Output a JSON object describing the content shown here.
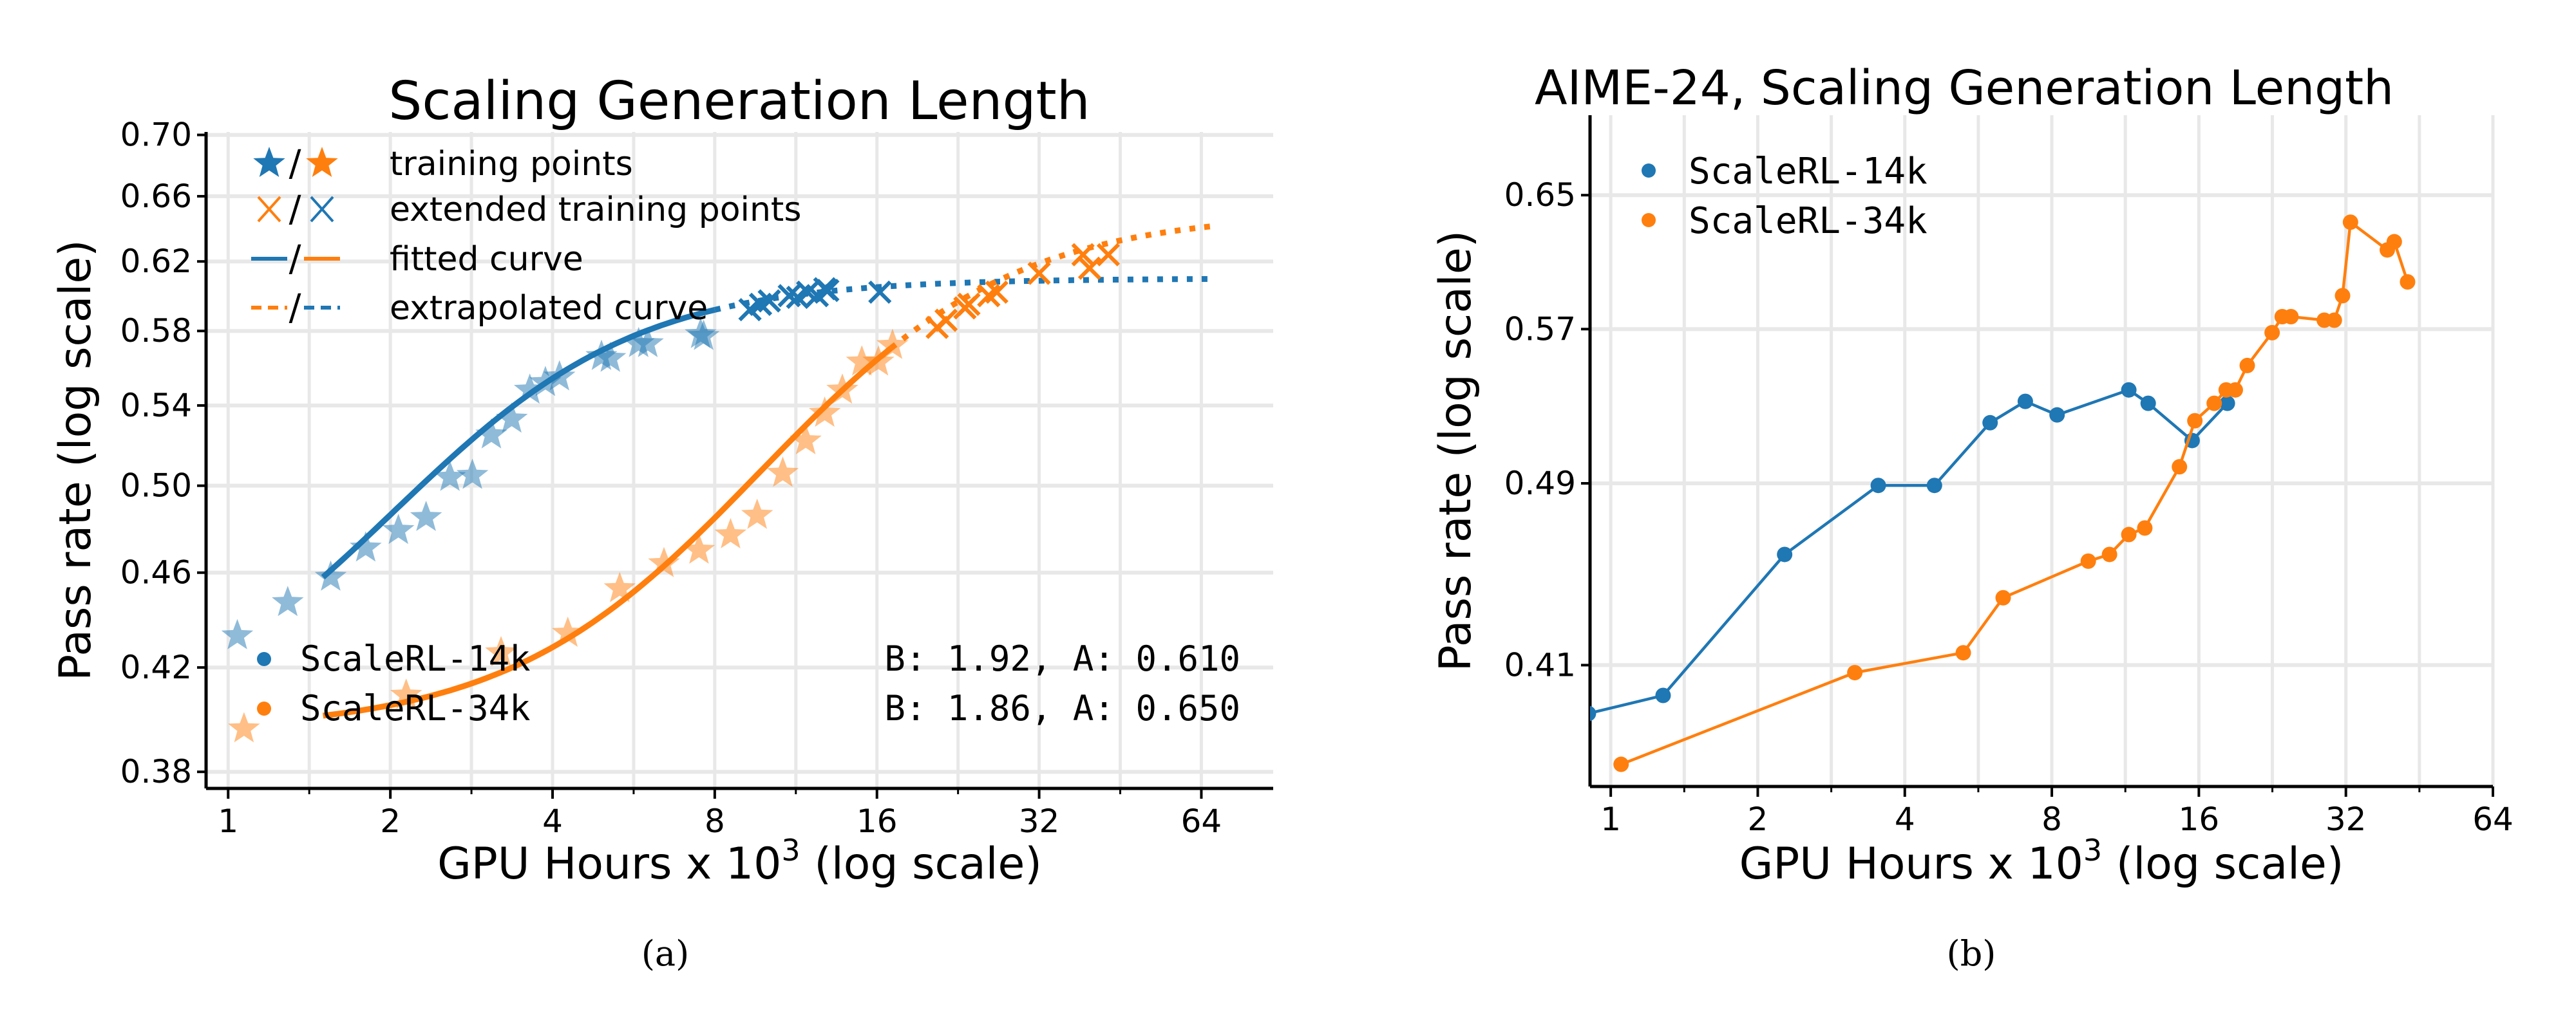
{
  "colors": {
    "blue": "#1f77b4",
    "orange": "#ff7f0e",
    "grid": "#e8e8e8",
    "axis": "#000000"
  },
  "captions": {
    "a": "(a)",
    "b": "(b)"
  },
  "chart_data": [
    {
      "type": "scatter",
      "title": "Scaling Generation Length",
      "xlabel": "GPU Hours x 10",
      "xlabel_sup": "3",
      "xlabel_suffix": " (log scale)",
      "ylabel": "Pass rate (log scale)",
      "xscale": "log2",
      "yscale": "log",
      "xlim": [
        0.91,
        87
      ],
      "ylim": [
        0.374,
        0.702
      ],
      "grid": true,
      "xticks": [
        "1",
        "2",
        "4",
        "8",
        "16",
        "32",
        "64"
      ],
      "yticks": [
        "0.38",
        "0.42",
        "0.46",
        "0.50",
        "0.54",
        "0.58",
        "0.62",
        "0.66",
        "0.70"
      ],
      "legend_top": {
        "placement": "top-left",
        "entries": [
          {
            "marker": "star",
            "sep": "/",
            "label": "training points"
          },
          {
            "marker": "x",
            "sep": "/",
            "label": "extended training points"
          },
          {
            "marker": "solid-line",
            "sep": "/",
            "label": "fitted curve"
          },
          {
            "marker": "dashed-line",
            "sep": "/",
            "label": "extrapolated curve"
          }
        ]
      },
      "legend_bottom": {
        "placement": "bottom-left",
        "entries": [
          "ScaleRL-14k",
          "ScaleRL-34k"
        ]
      },
      "annotations": [
        "B: 1.92, A: 0.610",
        "B: 1.86, A: 0.650"
      ],
      "series": [
        {
          "name": "ScaleRL-14k",
          "color": "blue",
          "fit": {
            "A": 0.61,
            "B": 1.92
          },
          "training_points": {
            "x": [
              1.04,
              1.29,
              1.55,
              1.8,
              2.07,
              2.33,
              2.58,
              2.84,
              3.08,
              3.36,
              3.63,
              3.88,
              4.12,
              4.93,
              5.12,
              5.78,
              6.01,
              7.53,
              7.63
            ],
            "y": [
              0.433,
              0.447,
              0.458,
              0.471,
              0.479,
              0.485,
              0.504,
              0.505,
              0.525,
              0.533,
              0.548,
              0.552,
              0.555,
              0.566,
              0.565,
              0.573,
              0.573,
              0.578,
              0.577
            ]
          },
          "extended_points": {
            "x": [
              9.3,
              9.73,
              10.1,
              11.0,
              11.4,
              11.9,
              12.4,
              12.8,
              12.97,
              16.2
            ],
            "y": [
              0.592,
              0.595,
              0.597,
              0.6,
              0.599,
              0.602,
              0.6,
              0.604,
              0.603,
              0.602
            ]
          }
        },
        {
          "name": "ScaleRL-34k",
          "color": "orange",
          "fit": {
            "A": 0.65,
            "B": 1.86
          },
          "training_points": {
            "x": [
              1.07,
              2.14,
              3.21,
              4.27,
              5.33,
              6.44,
              7.48,
              8.56,
              9.59,
              10.7,
              11.8,
              12.8,
              13.8,
              15.0,
              16.1,
              17.1
            ],
            "y": [
              0.396,
              0.409,
              0.426,
              0.434,
              0.453,
              0.464,
              0.47,
              0.477,
              0.486,
              0.506,
              0.522,
              0.536,
              0.548,
              0.563,
              0.563,
              0.572
            ]
          },
          "extended_points": {
            "x": [
              20.7,
              21.5,
              23.3,
              23.7,
              25.8,
              26.7,
              32.0,
              38.6,
              39.7,
              43.0
            ],
            "y": [
              0.582,
              0.586,
              0.593,
              0.595,
              0.6,
              0.602,
              0.613,
              0.624,
              0.616,
              0.624
            ]
          }
        }
      ]
    },
    {
      "type": "line",
      "title": "AIME-24, Scaling Generation Length",
      "xlabel": "GPU Hours x 10",
      "xlabel_sup": "3",
      "xlabel_suffix": " (log scale)",
      "ylabel": "Pass rate (log scale)",
      "xscale": "log2",
      "yscale": "log",
      "xlim": [
        0.907,
        64
      ],
      "ylim": [
        0.364,
        0.703
      ],
      "grid": true,
      "xticks": [
        "1",
        "2",
        "4",
        "8",
        "16",
        "32",
        "64"
      ],
      "yticks": [
        "0.41",
        "0.49",
        "0.57",
        "0.65"
      ],
      "legend": {
        "placement": "top-left",
        "entries": [
          "ScaleRL-14k",
          "ScaleRL-34k"
        ]
      },
      "series": [
        {
          "name": "ScaleRL-14k",
          "color": "blue",
          "x": [
            0.9,
            1.28,
            2.27,
            3.53,
            4.6,
            5.98,
            7.06,
            8.2,
            11.5,
            12.6,
            15.5,
            18.3
          ],
          "y": [
            0.391,
            0.398,
            0.457,
            0.489,
            0.489,
            0.52,
            0.531,
            0.524,
            0.537,
            0.53,
            0.511,
            0.53
          ]
        },
        {
          "name": "ScaleRL-34k",
          "color": "orange",
          "x": [
            1.05,
            3.16,
            5.27,
            6.36,
            9.5,
            10.5,
            11.5,
            12.4,
            14.6,
            15.7,
            17.2,
            18.2,
            19.0,
            20.1,
            22.6,
            23.7,
            24.7,
            28.9,
            30.3,
            31.5,
            32.7,
            38.9,
            40.2,
            42.8
          ],
          "y": [
            0.372,
            0.407,
            0.415,
            0.438,
            0.454,
            0.457,
            0.466,
            0.469,
            0.498,
            0.521,
            0.53,
            0.537,
            0.537,
            0.55,
            0.568,
            0.577,
            0.577,
            0.575,
            0.575,
            0.589,
            0.633,
            0.616,
            0.621,
            0.597
          ]
        }
      ]
    }
  ]
}
